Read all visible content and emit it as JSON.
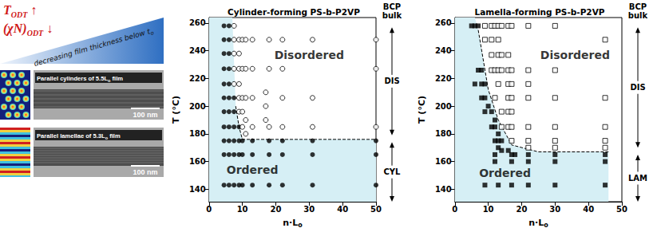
{
  "figure_text": {
    "headline": [
      {
        "text": "T",
        "sub": "ODT",
        "suffix": " ↑"
      },
      {
        "text": "(χN)",
        "sub": "ODT",
        "suffix": " ↓"
      }
    ],
    "wedge_label": {
      "text": "decreasing film thickness below t",
      "sub": "o",
      "suffix": ""
    },
    "images": [
      {
        "pattern": "cylinders",
        "caption": {
          "text": "Parallel cylinders of 5.5L",
          "sub": "o",
          "suffix": " film"
        },
        "scale_bar": "100 nm"
      },
      {
        "pattern": "lamellae",
        "caption": {
          "text": "Parallel lamellae of 5.3L",
          "sub": "o",
          "suffix": " film"
        },
        "scale_bar": "100 nm"
      }
    ]
  },
  "chart_data": [
    {
      "type": "scatter",
      "title": "Cylinder-forming PS-b-P2VP",
      "x_label": {
        "text": "n·L",
        "sub": "o"
      },
      "y_label": "T (°C)",
      "xlim": [
        0,
        50
      ],
      "xticks": [
        0,
        10,
        20,
        30,
        40,
        50
      ],
      "ylim": [
        131,
        264
      ],
      "yticks": [
        140,
        160,
        180,
        200,
        220,
        240,
        260
      ],
      "grid": false,
      "series": [
        {
          "marker": "filled_circle",
          "color": "#000000",
          "x": [
            4.5,
            4.5,
            4.5,
            4.5,
            4.5,
            4.5,
            4.5,
            4.5,
            4.5,
            4.5,
            4.5,
            6,
            6,
            6,
            6,
            6,
            6,
            6,
            6,
            6,
            6,
            6,
            7.5,
            7.5,
            7.5,
            7.5,
            7.5,
            7.5,
            9,
            9,
            9,
            9,
            10,
            10,
            10,
            13,
            13,
            13,
            18,
            18,
            18,
            22,
            22,
            22,
            31,
            31,
            31,
            50,
            50,
            50
          ],
          "y": [
            258,
            248,
            238,
            227,
            216,
            206,
            196,
            185,
            175,
            165,
            143,
            258,
            248,
            238,
            227,
            216,
            206,
            196,
            185,
            175,
            165,
            143,
            206,
            196,
            185,
            175,
            165,
            143,
            185,
            175,
            165,
            143,
            175,
            165,
            143,
            175,
            165,
            143,
            175,
            165,
            143,
            175,
            165,
            143,
            175,
            165,
            143,
            175,
            165,
            143
          ]
        },
        {
          "marker": "open_circle",
          "color": "#000000",
          "x": [
            7.5,
            7.5,
            7.5,
            7.5,
            7.5,
            9,
            9,
            9,
            9,
            9,
            9,
            10,
            10,
            10,
            10,
            10,
            11,
            11,
            11,
            11,
            11,
            13,
            13,
            13,
            13,
            17,
            17,
            17,
            18,
            18,
            18,
            22,
            22,
            22,
            22,
            31,
            31,
            31,
            50,
            50,
            50
          ],
          "y": [
            258,
            248,
            238,
            227,
            216,
            248,
            238,
            227,
            216,
            206,
            196,
            248,
            227,
            206,
            196,
            185,
            248,
            227,
            206,
            190,
            180,
            248,
            227,
            206,
            185,
            210,
            200,
            190,
            248,
            227,
            185,
            248,
            227,
            206,
            185,
            248,
            206,
            185,
            248,
            227,
            185
          ]
        }
      ],
      "ordered_region": {
        "color": "#d6eff5",
        "x": [
          0,
          7,
          8,
          10,
          50
        ],
        "y": [
          264,
          264,
          200,
          176,
          176
        ]
      },
      "boundary": {
        "line_style": "dashed",
        "color": "#000000",
        "x": [
          8,
          9,
          10,
          50
        ],
        "y": [
          200,
          185,
          176,
          176
        ]
      },
      "annotations": [
        {
          "text": "Disordered",
          "x": 30,
          "y": 237
        },
        {
          "text": "Ordered",
          "x": 13,
          "y": 154
        }
      ],
      "bulk_label": "BCP bulk",
      "phase_bands": [
        {
          "label": "DIS",
          "from": 257,
          "to": 179
        },
        {
          "label": "CYL",
          "from": 174,
          "to": 131
        }
      ]
    },
    {
      "type": "scatter",
      "title": "Lamella-forming PS-b-P2VP",
      "x_label": {
        "text": "n·L",
        "sub": "o"
      },
      "y_label": "T (°C)",
      "xlim": [
        0,
        50
      ],
      "xticks": [
        0,
        10,
        20,
        30,
        40,
        50
      ],
      "ylim": [
        131,
        264
      ],
      "yticks": [
        140,
        160,
        180,
        200,
        220,
        240,
        260
      ],
      "grid": false,
      "series": [
        {
          "marker": "filled_square",
          "color": "#000000",
          "x": [
            5,
            6,
            7,
            7,
            8,
            6,
            8,
            9,
            8,
            9,
            10,
            9,
            11,
            12,
            11,
            12,
            13,
            12,
            13,
            14,
            13,
            14,
            16,
            12,
            17,
            18,
            22,
            30,
            45,
            12,
            17,
            22,
            30,
            45,
            9,
            13,
            17,
            22,
            30,
            45
          ],
          "y": [
            258,
            258,
            258,
            226,
            226,
            216,
            216,
            216,
            206,
            206,
            200,
            196,
            196,
            190,
            185,
            185,
            180,
            175,
            175,
            175,
            170,
            168,
            168,
            165,
            165,
            165,
            165,
            165,
            165,
            160,
            160,
            160,
            160,
            160,
            143,
            143,
            143,
            143,
            143,
            143
          ]
        },
        {
          "marker": "open_square",
          "color": "#000000",
          "x": [
            9,
            11,
            12,
            13,
            14,
            16,
            17,
            22,
            30,
            45,
            9,
            11,
            13,
            11,
            13,
            14,
            16,
            11,
            12,
            13,
            14,
            16,
            17,
            22,
            30,
            13,
            16,
            17,
            22,
            12,
            16,
            17,
            22,
            30,
            45,
            14,
            16,
            17,
            14,
            16,
            17,
            22,
            30,
            45,
            17,
            22,
            30,
            45,
            22,
            30,
            45
          ],
          "y": [
            258,
            258,
            258,
            258,
            258,
            258,
            258,
            258,
            258,
            248,
            248,
            248,
            248,
            237,
            237,
            237,
            237,
            226,
            226,
            226,
            226,
            226,
            226,
            226,
            226,
            216,
            216,
            216,
            216,
            206,
            206,
            206,
            206,
            206,
            206,
            196,
            196,
            196,
            185,
            185,
            185,
            185,
            185,
            185,
            175,
            175,
            175,
            175,
            170,
            170,
            170
          ]
        }
      ],
      "ordered_region": {
        "color": "#d6eff5",
        "x": [
          0,
          6,
          7,
          10,
          13,
          17,
          25,
          46
        ],
        "y": [
          264,
          264,
          255,
          212,
          190,
          172,
          167,
          167
        ]
      },
      "boundary": {
        "line_style": "dashed",
        "color": "#000000",
        "x": [
          7,
          10,
          13,
          17,
          25,
          46
        ],
        "y": [
          255,
          212,
          190,
          172,
          167,
          167
        ]
      },
      "annotations": [
        {
          "text": "Disordered",
          "x": 36,
          "y": 237
        },
        {
          "text": "Ordered",
          "x": 15,
          "y": 151.5
        }
      ],
      "bulk_label": "BCP bulk",
      "phase_bands": [
        {
          "label": "DIS",
          "from": 257,
          "to": 170
        },
        {
          "label": "LAM",
          "from": 165,
          "to": 131
        }
      ]
    }
  ]
}
